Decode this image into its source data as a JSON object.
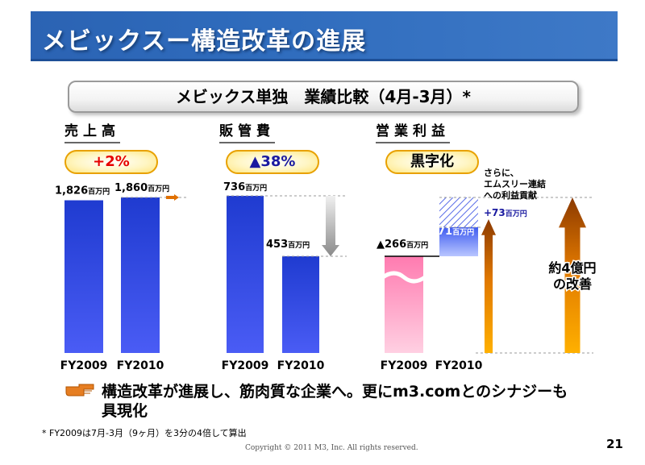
{
  "header": {
    "title": "メビックスー構造改革の進展"
  },
  "subtitle": "メビックス単独　業績比較（4月-3月）*",
  "sections": {
    "sales": {
      "label": "売上高",
      "change": "+2%",
      "change_color": "#e60000"
    },
    "sga": {
      "label": "販管費",
      "change": "▲38%",
      "change_color": "#1a1aa0"
    },
    "op": {
      "label": "営業利益",
      "change": "黒字化",
      "change_color": "#000000"
    }
  },
  "chart_data": [
    {
      "type": "bar",
      "name": "売上高",
      "categories": [
        "FY2009",
        "FY2010"
      ],
      "values": [
        1826,
        1860
      ],
      "value_labels": [
        "1,826",
        "1,860"
      ],
      "unit": "百万円",
      "annotation": "+2%"
    },
    {
      "type": "bar",
      "name": "販管費",
      "categories": [
        "FY2009",
        "FY2010"
      ],
      "values": [
        736,
        453
      ],
      "value_labels": [
        "736",
        "453"
      ],
      "unit": "百万円",
      "annotation": "▲38%"
    },
    {
      "type": "bar",
      "name": "営業利益",
      "categories": [
        "FY2009",
        "FY2010"
      ],
      "values": [
        -266,
        71
      ],
      "value_labels": [
        "▲266",
        "71"
      ],
      "unit": "百万円",
      "annotation": "黒字化",
      "extra": {
        "label_line1": "さらに、",
        "label_line2": "エムスリー連結",
        "label_line3": "への利益貢献",
        "value_label": "+73",
        "value": 73,
        "unit": "百万円"
      },
      "improvement_line1": "約4億円",
      "improvement_line2": "の改善"
    }
  ],
  "conclusion": "構造改革が進展し、筋肉質な企業へ。更にm3.comとのシナジーも具現化",
  "footnote": "* FY2009は7月-3月（9ヶ月）を3分の4倍して算出",
  "copyright": "Copyright © 2011  M3, Inc.  All rights reserved.",
  "page_number": "21",
  "colors": {
    "title_bar": "#2f6cbd",
    "bar_blue": "#1f3fd6",
    "bar_pink": "#ff8db8",
    "arrow_orange": "#f08c00",
    "arrow_brown": "#8c3a00"
  },
  "icons": {
    "pointer": "pointing-hand-icon"
  }
}
